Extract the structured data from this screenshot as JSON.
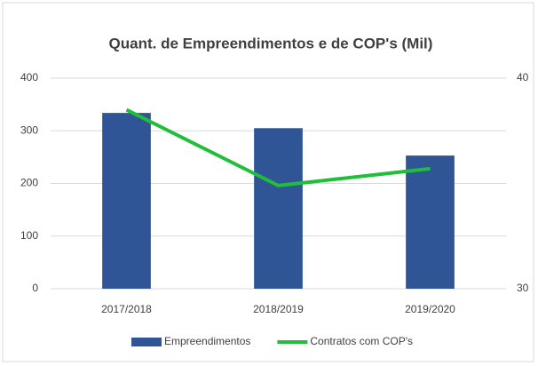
{
  "chart_data": {
    "type": "bar",
    "title": "Quant. de Empreendimentos e de COP's (Mil)",
    "categories": [
      "2017/2018",
      "2018/2019",
      "2019/2020"
    ],
    "series": [
      {
        "name": "Empreendimentos",
        "type": "bar",
        "color": "#2f5597",
        "values": [
          334,
          305,
          253
        ]
      },
      {
        "name": "Contratos com COP's",
        "type": "line",
        "axis": "y2",
        "color": "#1fbf3a",
        "values": [
          38.5,
          34.9,
          35.7
        ]
      }
    ],
    "ylim": [
      0,
      400
    ],
    "yticks": [
      0,
      100,
      200,
      300,
      400
    ],
    "y2lim": [
      30,
      40
    ],
    "y2ticks": [
      30,
      40
    ],
    "grid": true,
    "legend": "bottom"
  }
}
